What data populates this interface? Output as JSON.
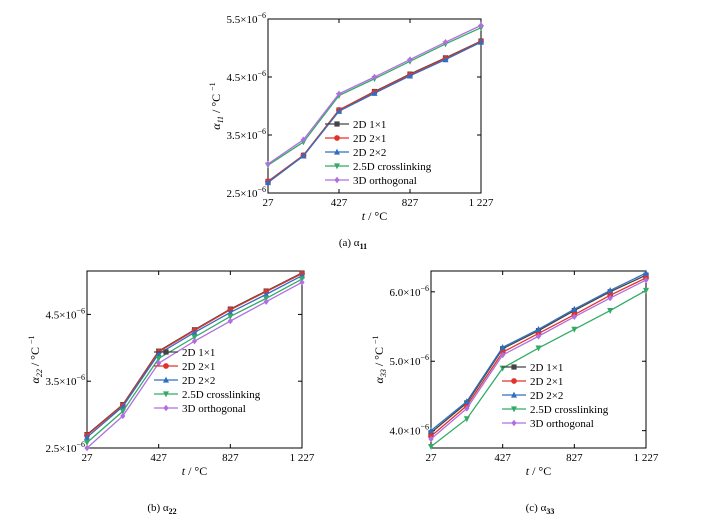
{
  "chart_data": [
    {
      "type": "line",
      "caption": "(a) α11",
      "xlabel": "t / °C",
      "ylabel": "α11 / °C −1",
      "x": [
        27,
        227,
        427,
        627,
        827,
        1027,
        1227
      ],
      "xticks": [
        "27",
        "427",
        "827",
        "1 227"
      ],
      "xlim": [
        27,
        1227
      ],
      "yticks": [
        "2.5×10−6",
        "3.5×10−6",
        "4.5×10−6",
        "5.5×10−6"
      ],
      "ylim": [
        2.5e-06,
        5.5e-06
      ],
      "series": [
        {
          "name": "2D 1×1",
          "color": "#444444",
          "marker": "square",
          "values": [
            2.7e-06,
            3.15e-06,
            3.93e-06,
            4.25e-06,
            4.55e-06,
            4.83e-06,
            5.12e-06
          ]
        },
        {
          "name": "2D 2×1",
          "color": "#e0332b",
          "marker": "circle",
          "values": [
            2.7e-06,
            3.15e-06,
            3.93e-06,
            4.24e-06,
            4.54e-06,
            4.82e-06,
            5.11e-06
          ]
        },
        {
          "name": "2D 2×2",
          "color": "#2e6fc2",
          "marker": "triangle",
          "values": [
            2.68e-06,
            3.14e-06,
            3.91e-06,
            4.22e-06,
            4.52e-06,
            4.8e-06,
            5.1e-06
          ]
        },
        {
          "name": "2.5D crosslinking",
          "color": "#33aa66",
          "marker": "triangle-down",
          "values": [
            2.98e-06,
            3.38e-06,
            4.18e-06,
            4.47e-06,
            4.77e-06,
            5.07e-06,
            5.35e-06
          ]
        },
        {
          "name": "3D orthogonal",
          "color": "#b06ee0",
          "marker": "diamond",
          "values": [
            3e-06,
            3.42e-06,
            4.21e-06,
            4.5e-06,
            4.8e-06,
            5.1e-06,
            5.39e-06
          ]
        }
      ],
      "legend": "right"
    },
    {
      "type": "line",
      "caption": "(b) α22",
      "xlabel": "t / °C",
      "ylabel": "α22 / °C −1",
      "x": [
        27,
        227,
        427,
        627,
        827,
        1027,
        1227
      ],
      "xticks": [
        "27",
        "427",
        "827",
        "1 227"
      ],
      "xlim": [
        27,
        1227
      ],
      "yticks": [
        "2.5×10−6",
        "3.5×10−6",
        "4.5×10−6"
      ],
      "ylim": [
        2.5e-06,
        5.15e-06
      ],
      "series": [
        {
          "name": "2D 1×1",
          "color": "#444444",
          "marker": "square",
          "values": [
            2.7e-06,
            3.15e-06,
            3.95e-06,
            4.27e-06,
            4.58e-06,
            4.85e-06,
            5.12e-06
          ]
        },
        {
          "name": "2D 2×1",
          "color": "#e0332b",
          "marker": "circle",
          "values": [
            2.69e-06,
            3.14e-06,
            3.94e-06,
            4.26e-06,
            4.57e-06,
            4.84e-06,
            5.11e-06
          ]
        },
        {
          "name": "2D 2×2",
          "color": "#2e6fc2",
          "marker": "triangle",
          "values": [
            2.66e-06,
            3.12e-06,
            3.91e-06,
            4.23e-06,
            4.53e-06,
            4.8e-06,
            5.08e-06
          ]
        },
        {
          "name": "2.5D crosslinking",
          "color": "#33aa66",
          "marker": "triangle-down",
          "values": [
            2.58e-06,
            3.05e-06,
            3.84e-06,
            4.16e-06,
            4.47e-06,
            4.74e-06,
            5.03e-06
          ]
        },
        {
          "name": "3D orthogonal",
          "color": "#b06ee0",
          "marker": "diamond",
          "values": [
            2.5e-06,
            2.98e-06,
            3.77e-06,
            4.1e-06,
            4.4e-06,
            4.69e-06,
            4.98e-06
          ]
        }
      ],
      "legend": "bottom-right"
    },
    {
      "type": "line",
      "caption": "(c) α33",
      "xlabel": "t / °C",
      "ylabel": "α33 / °C −1",
      "x": [
        27,
        227,
        427,
        627,
        827,
        1027,
        1227
      ],
      "xticks": [
        "27",
        "427",
        "827",
        "1 227"
      ],
      "xlim": [
        27,
        1227
      ],
      "yticks": [
        "4.0×10−6",
        "5.0×10−6",
        "6.0×10−6"
      ],
      "ylim": [
        3.75e-06,
        6.3e-06
      ],
      "series": [
        {
          "name": "2D 1×1",
          "color": "#444444",
          "marker": "square",
          "values": [
            3.97e-06,
            4.4e-06,
            5.18e-06,
            5.44e-06,
            5.73e-06,
            6e-06,
            6.24e-06
          ]
        },
        {
          "name": "2D 2×1",
          "color": "#e0332b",
          "marker": "circle",
          "values": [
            3.92e-06,
            4.36e-06,
            5.13e-06,
            5.4e-06,
            5.67e-06,
            5.95e-06,
            6.2e-06
          ]
        },
        {
          "name": "2D 2×2",
          "color": "#2e6fc2",
          "marker": "triangle",
          "values": [
            4e-06,
            4.42e-06,
            5.2e-06,
            5.46e-06,
            5.75e-06,
            6.02e-06,
            6.27e-06
          ]
        },
        {
          "name": "2.5D crosslinking",
          "color": "#33aa66",
          "marker": "triangle-down",
          "values": [
            3.77e-06,
            4.17e-06,
            4.9e-06,
            5.19e-06,
            5.46e-06,
            5.73e-06,
            6.02e-06
          ]
        },
        {
          "name": "3D orthogonal",
          "color": "#b06ee0",
          "marker": "diamond",
          "values": [
            3.88e-06,
            4.32e-06,
            5.09e-06,
            5.36e-06,
            5.64e-06,
            5.91e-06,
            6.17e-06
          ]
        }
      ],
      "legend": "bottom-right"
    }
  ]
}
